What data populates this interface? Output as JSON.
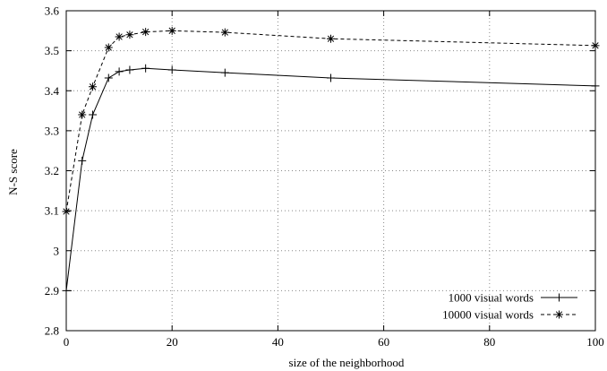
{
  "chart_data": {
    "type": "line",
    "title": "",
    "xlabel": "size of the neighborhood",
    "ylabel": "N-S score",
    "xlim": [
      0,
      100
    ],
    "ylim": [
      2.8,
      3.6
    ],
    "x_ticks": [
      "0",
      "20",
      "40",
      "60",
      "80",
      "100"
    ],
    "y_ticks": [
      "2.8",
      "2.9",
      "3",
      "3.1",
      "3.2",
      "3.3",
      "3.4",
      "3.5",
      "3.6"
    ],
    "grid": true,
    "legend_position": "bottom-right",
    "series": [
      {
        "name": "1000 visual words",
        "line_style": "solid",
        "marker": "+",
        "x": [
          0,
          3,
          5,
          8,
          10,
          12,
          15,
          20,
          30,
          50,
          100
        ],
        "y": [
          2.9,
          3.225,
          3.34,
          3.432,
          3.448,
          3.452,
          3.456,
          3.452,
          3.445,
          3.432,
          3.412
        ]
      },
      {
        "name": "10000 visual words",
        "line_style": "dashed",
        "marker": "*",
        "x": [
          0,
          3,
          5,
          8,
          10,
          12,
          15,
          20,
          30,
          50,
          100
        ],
        "y": [
          3.098,
          3.34,
          3.41,
          3.508,
          3.535,
          3.54,
          3.547,
          3.55,
          3.546,
          3.53,
          3.513
        ]
      }
    ]
  }
}
